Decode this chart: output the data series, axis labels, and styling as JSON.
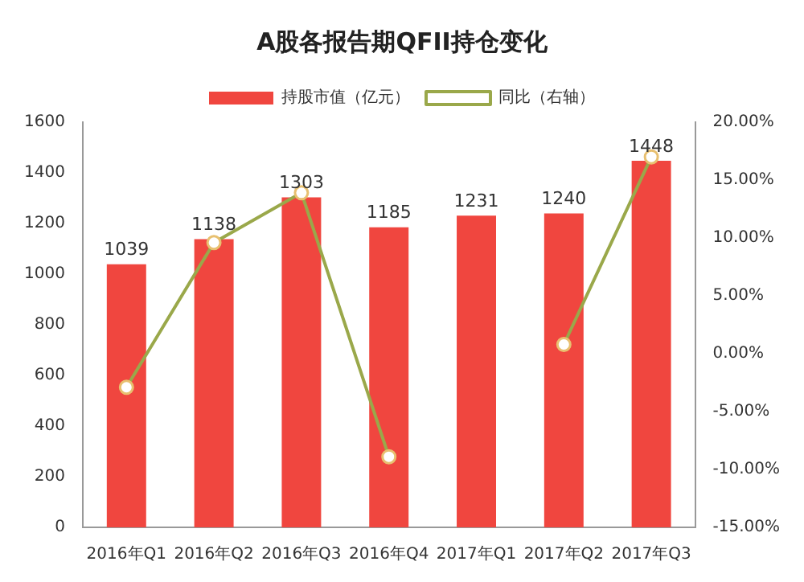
{
  "chart_data": {
    "type": "bar",
    "title": "A股各报告期QFII持仓变化",
    "categories": [
      "2016年Q1",
      "2016年Q2",
      "2016年Q3",
      "2016年Q4",
      "2017年Q1",
      "2017年Q2",
      "2017年Q3"
    ],
    "series": [
      {
        "name": "持股市值（亿元）",
        "color": "#f0463f",
        "values": [
          1039,
          1138,
          1303,
          1185,
          1231,
          1240,
          1448
        ],
        "value_labels": [
          "1039",
          "1138",
          "1303",
          "1185",
          "1231",
          "1240",
          "1448"
        ]
      },
      {
        "name": "同比（右轴）",
        "type": "line",
        "axis": "y2",
        "color": "#9aa84a",
        "marker": "circle",
        "values": [
          -2.9,
          9.6,
          13.9,
          -8.9,
          null,
          0.8,
          17.0
        ]
      }
    ],
    "ylim": [
      0,
      1600
    ],
    "yticks": [
      0,
      200,
      400,
      600,
      800,
      1000,
      1200,
      1400,
      1600
    ],
    "y2lim": [
      -15,
      20
    ],
    "y2ticks": [
      {
        "value": -15,
        "label": "-15.00%"
      },
      {
        "value": -10,
        "label": "-10.00%"
      },
      {
        "value": -5,
        "label": "-5.00%"
      },
      {
        "value": 0,
        "label": "0.00%"
      },
      {
        "value": 5,
        "label": "5.00%"
      },
      {
        "value": 10,
        "label": "10.00%"
      },
      {
        "value": 15,
        "label": "15.00%"
      },
      {
        "value": 20,
        "label": "20.00%"
      }
    ],
    "legend": "top",
    "grid": false
  }
}
